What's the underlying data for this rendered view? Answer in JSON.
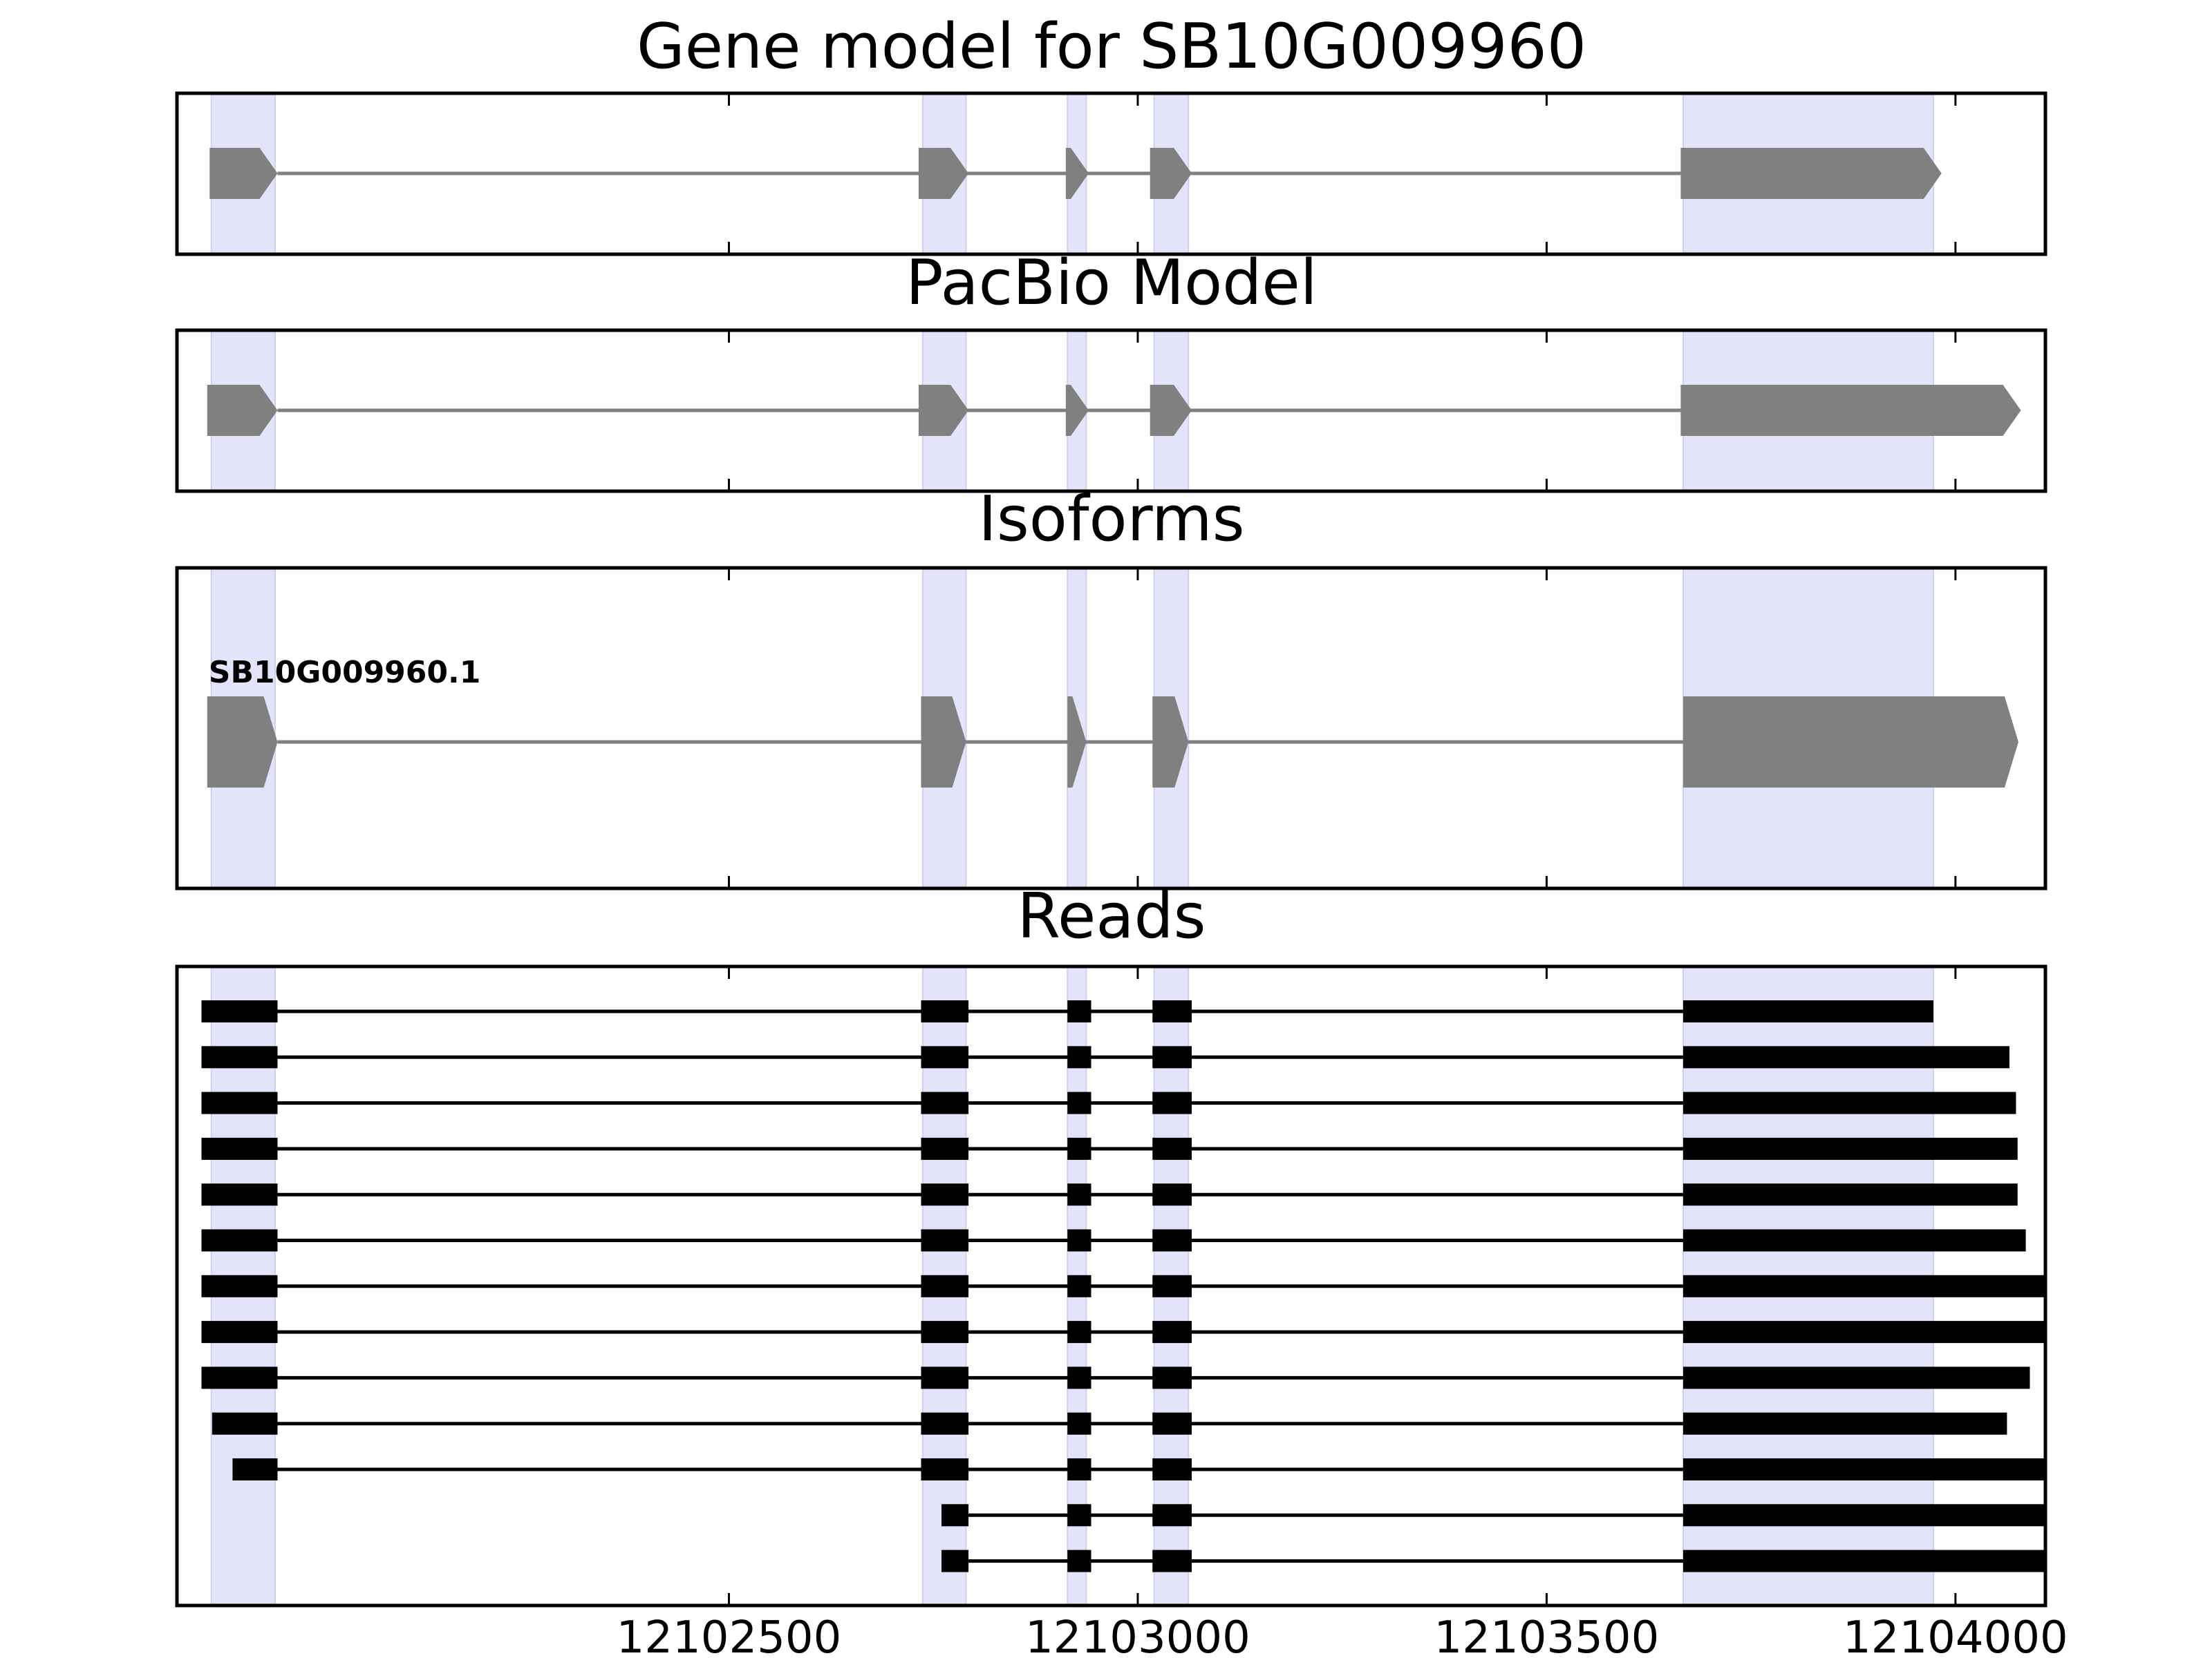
{
  "chart_data": {
    "type": "gene-model",
    "xlim": [
      12101825,
      12104110
    ],
    "xticks": [
      12102500,
      12103000,
      12103500,
      12104000
    ],
    "xtick_labels": [
      "12102500",
      "12103000",
      "12103500",
      "12104000"
    ],
    "highlight_regions": [
      [
        12101867,
        12101945
      ],
      [
        12102737,
        12102790
      ],
      [
        12102914,
        12102937
      ],
      [
        12103020,
        12103062
      ],
      [
        12103667,
        12103973
      ]
    ],
    "panels": [
      {
        "title": "Gene model for SB10G009960",
        "features": [
          {
            "strand": "+",
            "exons": [
              [
                12101865,
                12101948
              ],
              [
                12102732,
                12102793
              ],
              [
                12102912,
                12102940
              ],
              [
                12103015,
                12103066
              ],
              [
                12103664,
                12103983
              ]
            ]
          }
        ]
      },
      {
        "title": "PacBio Model",
        "features": [
          {
            "strand": "+",
            "exons": [
              [
                12101862,
                12101948
              ],
              [
                12102732,
                12102793
              ],
              [
                12102912,
                12102940
              ],
              [
                12103015,
                12103066
              ],
              [
                12103664,
                12104080
              ]
            ]
          }
        ]
      },
      {
        "title": "Isoforms",
        "features": [
          {
            "name": "SB10G009960.1",
            "strand": "+",
            "exons": [
              [
                12101862,
                12101948
              ],
              [
                12102735,
                12102790
              ],
              [
                12102914,
                12102937
              ],
              [
                12103018,
                12103062
              ],
              [
                12103667,
                12104077
              ]
            ]
          }
        ]
      },
      {
        "title": "Reads",
        "reads": [
          [
            [
              12101855,
              12101948
            ],
            [
              12102735,
              12102793
            ],
            [
              12102914,
              12102943
            ],
            [
              12103018,
              12103066
            ],
            [
              12103667,
              12103973
            ]
          ],
          [
            [
              12101855,
              12101948
            ],
            [
              12102735,
              12102793
            ],
            [
              12102914,
              12102943
            ],
            [
              12103018,
              12103066
            ],
            [
              12103667,
              12104066
            ]
          ],
          [
            [
              12101855,
              12101948
            ],
            [
              12102735,
              12102793
            ],
            [
              12102914,
              12102943
            ],
            [
              12103018,
              12103066
            ],
            [
              12103667,
              12104074
            ]
          ],
          [
            [
              12101855,
              12101948
            ],
            [
              12102735,
              12102793
            ],
            [
              12102914,
              12102943
            ],
            [
              12103018,
              12103066
            ],
            [
              12103667,
              12104076
            ]
          ],
          [
            [
              12101855,
              12101948
            ],
            [
              12102735,
              12102793
            ],
            [
              12102914,
              12102943
            ],
            [
              12103018,
              12103066
            ],
            [
              12103667,
              12104076
            ]
          ],
          [
            [
              12101855,
              12101948
            ],
            [
              12102735,
              12102793
            ],
            [
              12102914,
              12102943
            ],
            [
              12103018,
              12103066
            ],
            [
              12103667,
              12104086
            ]
          ],
          [
            [
              12101855,
              12101948
            ],
            [
              12102735,
              12102793
            ],
            [
              12102914,
              12102943
            ],
            [
              12103018,
              12103066
            ],
            [
              12103667,
              12104110
            ]
          ],
          [
            [
              12101855,
              12101948
            ],
            [
              12102735,
              12102793
            ],
            [
              12102914,
              12102943
            ],
            [
              12103018,
              12103066
            ],
            [
              12103667,
              12104110
            ]
          ],
          [
            [
              12101855,
              12101948
            ],
            [
              12102735,
              12102793
            ],
            [
              12102914,
              12102943
            ],
            [
              12103018,
              12103066
            ],
            [
              12103667,
              12104091
            ]
          ],
          [
            [
              12101868,
              12101948
            ],
            [
              12102735,
              12102793
            ],
            [
              12102914,
              12102943
            ],
            [
              12103018,
              12103066
            ],
            [
              12103667,
              12104063
            ]
          ],
          [
            [
              12101893,
              12101948
            ],
            [
              12102735,
              12102793
            ],
            [
              12102914,
              12102943
            ],
            [
              12103018,
              12103066
            ],
            [
              12103667,
              12104110
            ]
          ],
          [
            [
              12102760,
              12102793
            ],
            [
              12102914,
              12102943
            ],
            [
              12103018,
              12103066
            ],
            [
              12103667,
              12104110
            ]
          ],
          [
            [
              12102760,
              12102793
            ],
            [
              12102914,
              12102943
            ],
            [
              12103018,
              12103066
            ],
            [
              12103667,
              12104110
            ]
          ]
        ]
      }
    ]
  }
}
